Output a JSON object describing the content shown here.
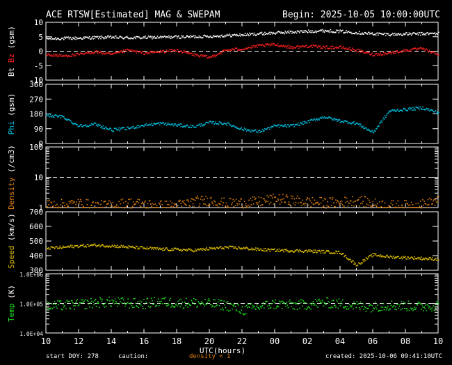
{
  "header": {
    "title": "ACE RTSW[Estimated] MAG & SWEPAM",
    "begin": "Begin: 2025-10-05 10:00:00UTC"
  },
  "footer": {
    "start_doy": "start DOY: 278",
    "caution": "caution:",
    "density_note": "density < 1",
    "created": "created: 2025-10-06 09:41:10UTC"
  },
  "colors": {
    "bt": "#ffffff",
    "bz": "#ff2020",
    "phi": "#00c0e0",
    "density": "#e08010",
    "speed": "#e0c000",
    "temp": "#20e020",
    "axis": "#ffffff",
    "background": "#000000"
  },
  "chart_data": [
    {
      "type": "scatter",
      "panel": "mag_field",
      "ylabel_parts": [
        "Bt",
        "Bz",
        "(gsm)"
      ],
      "ylabel_colors": [
        "#ffffff",
        "#ff2020",
        "#ffffff"
      ],
      "ylim": [
        -10,
        10
      ],
      "yticks": [
        -10,
        -5,
        0,
        5,
        10
      ],
      "ytick_labels": [
        "-10",
        "-5",
        "0",
        "5",
        "10"
      ],
      "reference_line": 0,
      "xlim": [
        0,
        24
      ],
      "series": [
        {
          "name": "Bt",
          "color": "#ffffff",
          "x": [
            0,
            1,
            2,
            3,
            4,
            5,
            6,
            7,
            8,
            9,
            10,
            11,
            12,
            13,
            14,
            15,
            16,
            17,
            18,
            19,
            20,
            21,
            22,
            23,
            24
          ],
          "values": [
            4.5,
            4.6,
            4.7,
            4.9,
            5.0,
            4.8,
            4.9,
            5.0,
            5.1,
            5.2,
            5.3,
            5.6,
            5.8,
            6.2,
            6.5,
            6.8,
            7.0,
            7.3,
            7.0,
            6.6,
            6.2,
            6.0,
            6.1,
            6.2,
            6.3
          ]
        },
        {
          "name": "Bz",
          "color": "#ff2020",
          "x": [
            0,
            1,
            2,
            3,
            4,
            5,
            6,
            7,
            8,
            9,
            10,
            11,
            12,
            13,
            14,
            15,
            16,
            17,
            18,
            19,
            20,
            21,
            22,
            23,
            24
          ],
          "values": [
            -1,
            -1.5,
            -1,
            0,
            -1,
            0.5,
            -0.5,
            0,
            0.5,
            -1,
            -2,
            0.5,
            1,
            2,
            2.5,
            1.5,
            2,
            1.5,
            1.5,
            0.5,
            -1,
            -0.5,
            0.5,
            1,
            -1
          ]
        }
      ]
    },
    {
      "type": "scatter",
      "panel": "phi",
      "ylabel_parts": [
        "Phi",
        "(gsm)"
      ],
      "ylabel_colors": [
        "#00c0e0",
        "#ffffff"
      ],
      "ylim": [
        0,
        360
      ],
      "yticks": [
        0,
        90,
        180,
        270,
        360
      ],
      "ytick_labels": [
        "0",
        "90",
        "180",
        "270",
        "360"
      ],
      "xlim": [
        0,
        24
      ],
      "series": [
        {
          "name": "Phi",
          "color": "#00c0e0",
          "x": [
            0,
            1,
            2,
            3,
            4,
            5,
            6,
            7,
            8,
            9,
            10,
            11,
            12,
            13,
            14,
            15,
            16,
            17,
            18,
            19,
            20,
            21,
            22,
            23,
            24
          ],
          "values": [
            175,
            165,
            110,
            120,
            85,
            95,
            115,
            125,
            115,
            105,
            130,
            125,
            90,
            75,
            110,
            110,
            135,
            165,
            140,
            125,
            70,
            200,
            210,
            220,
            190
          ]
        }
      ]
    },
    {
      "type": "scatter",
      "panel": "density",
      "ylabel_parts": [
        "Density",
        "(/cm3)"
      ],
      "ylabel_colors": [
        "#e08010",
        "#ffffff"
      ],
      "yscale": "log",
      "ylim": [
        1,
        100
      ],
      "yticks": [
        1,
        10,
        100
      ],
      "ytick_labels": [
        "1",
        "10",
        "100"
      ],
      "reference_line": 10,
      "xlim": [
        0,
        24
      ],
      "series": [
        {
          "name": "Density",
          "color": "#e08010",
          "x": [
            0,
            1,
            2,
            3,
            4,
            5,
            6,
            7,
            8,
            9,
            10,
            11,
            12,
            13,
            14,
            15,
            16,
            17,
            18,
            19,
            20,
            21,
            22,
            23,
            24
          ],
          "values": [
            1.3,
            1.3,
            1.4,
            1.2,
            1.2,
            1.5,
            1.3,
            1.2,
            1.2,
            1.6,
            1.8,
            1.4,
            1.5,
            1.6,
            2.0,
            1.8,
            1.6,
            1.5,
            1.5,
            1.8,
            1.4,
            1.2,
            1.2,
            1.3,
            1.7
          ]
        }
      ]
    },
    {
      "type": "scatter",
      "panel": "speed",
      "ylabel_parts": [
        "Speed",
        "(km/s)"
      ],
      "ylabel_colors": [
        "#e0c000",
        "#ffffff"
      ],
      "ylim": [
        300,
        700
      ],
      "yticks": [
        300,
        400,
        500,
        600,
        700
      ],
      "ytick_labels": [
        "300",
        "400",
        "500",
        "600",
        "700"
      ],
      "xlim": [
        0,
        24
      ],
      "series": [
        {
          "name": "Speed",
          "color": "#e0c000",
          "x": [
            0,
            1,
            2,
            3,
            4,
            5,
            6,
            7,
            8,
            9,
            10,
            11,
            12,
            13,
            14,
            15,
            16,
            17,
            18,
            19,
            20,
            21,
            22,
            23,
            24
          ],
          "values": [
            455,
            460,
            470,
            475,
            470,
            462,
            455,
            448,
            445,
            440,
            450,
            460,
            455,
            445,
            440,
            438,
            435,
            430,
            425,
            340,
            410,
            395,
            390,
            385,
            380
          ]
        }
      ]
    },
    {
      "type": "scatter",
      "panel": "temp",
      "ylabel_parts": [
        "Temp",
        "(K)"
      ],
      "ylabel_colors": [
        "#20e020",
        "#ffffff"
      ],
      "yscale": "log",
      "ylim": [
        10000,
        1000000
      ],
      "yticks": [
        10000,
        100000,
        1000000
      ],
      "ytick_labels": [
        "1.0E+04",
        "1.0E+05",
        "1.0E+06"
      ],
      "reference_line": 100000,
      "xlim": [
        0,
        24
      ],
      "xlabel": "UTC(hours)",
      "xtick_labels": [
        "10",
        "12",
        "14",
        "16",
        "18",
        "20",
        "22",
        "00",
        "02",
        "04",
        "06",
        "08",
        "10"
      ],
      "series": [
        {
          "name": "Temp",
          "color": "#20e020",
          "x": [
            0,
            1,
            2,
            3,
            4,
            5,
            6,
            7,
            8,
            9,
            10,
            11,
            12,
            13,
            14,
            15,
            16,
            17,
            18,
            19,
            20,
            21,
            22,
            23,
            24
          ],
          "values": [
            80000,
            90000,
            95000,
            110000,
            115000,
            105000,
            100000,
            120000,
            105000,
            110000,
            100000,
            90000,
            60000,
            80000,
            100000,
            90000,
            95000,
            110000,
            100000,
            85000,
            80000,
            90000,
            85000,
            80000,
            90000
          ]
        }
      ]
    }
  ]
}
